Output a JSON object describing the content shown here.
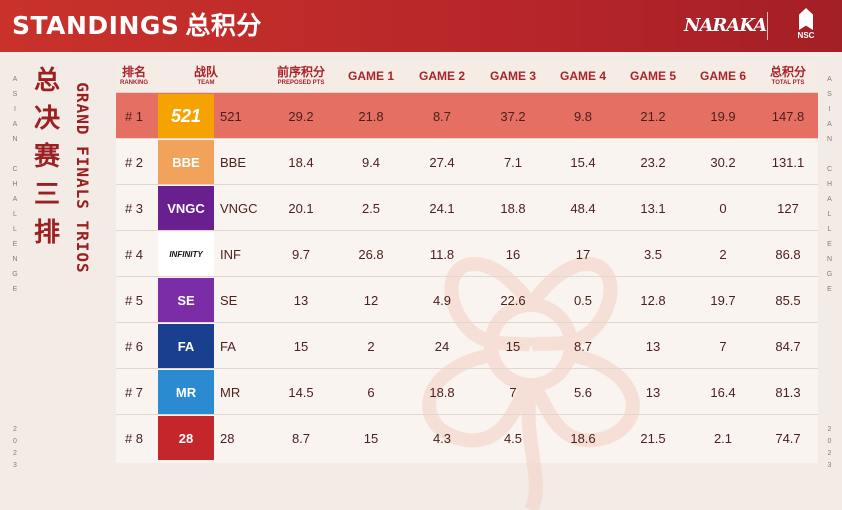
{
  "header": {
    "title_en": "STANDINGS",
    "title_cn": "总积分",
    "brand": "NARAKA",
    "event_logo": "NSC"
  },
  "side": {
    "left_vertical": "ASIAN CHALLENGE",
    "left_year": "2023",
    "right_vertical": "ASIAN CHALLENGE",
    "right_year": "2023",
    "cn_title": "总决赛三排",
    "en_title": "GRAND FINALS TRIOS"
  },
  "table": {
    "headers": [
      {
        "cn": "排名",
        "en": "RANKING"
      },
      {
        "cn": "战队",
        "en": "TEAM"
      },
      {
        "cn": "前序积分",
        "en": "PREPOSED PTS"
      },
      {
        "cn": "GAME 1",
        "en": ""
      },
      {
        "cn": "GAME 2",
        "en": ""
      },
      {
        "cn": "GAME 3",
        "en": ""
      },
      {
        "cn": "GAME 4",
        "en": ""
      },
      {
        "cn": "GAME 5",
        "en": ""
      },
      {
        "cn": "GAME 6",
        "en": ""
      },
      {
        "cn": "总积分",
        "en": "TOTAL PTS"
      }
    ],
    "rows": [
      {
        "rank": "# 1",
        "logo": "521",
        "logo_color": "#f6a200",
        "team": "521",
        "pre": "29.2",
        "g1": "21.8",
        "g2": "8.7",
        "g3": "37.2",
        "g4": "9.8",
        "g5": "21.2",
        "g6": "19.9",
        "total": "147.8"
      },
      {
        "rank": "# 2",
        "logo": "BBE",
        "logo_color": "#f1a35b",
        "team": "BBE",
        "pre": "18.4",
        "g1": "9.4",
        "g2": "27.4",
        "g3": "7.1",
        "g4": "15.4",
        "g5": "23.2",
        "g6": "30.2",
        "total": "131.1"
      },
      {
        "rank": "# 3",
        "logo": "VNGC",
        "logo_color": "#6a1f8f",
        "team": "VNGC",
        "pre": "20.1",
        "g1": "2.5",
        "g2": "24.1",
        "g3": "18.8",
        "g4": "48.4",
        "g5": "13.1",
        "g6": "0",
        "total": "127"
      },
      {
        "rank": "# 4",
        "logo": "INFINITY",
        "logo_color": "#ffffff",
        "team": "INF",
        "pre": "9.7",
        "g1": "26.8",
        "g2": "11.8",
        "g3": "16",
        "g4": "17",
        "g5": "3.5",
        "g6": "2",
        "total": "86.8"
      },
      {
        "rank": "# 5",
        "logo": "SE",
        "logo_color": "#7a2da6",
        "team": "SE",
        "pre": "13",
        "g1": "12",
        "g2": "4.9",
        "g3": "22.6",
        "g4": "0.5",
        "g5": "12.8",
        "g6": "19.7",
        "total": "85.5"
      },
      {
        "rank": "# 6",
        "logo": "FA",
        "logo_color": "#1b3f8f",
        "team": "FA",
        "pre": "15",
        "g1": "2",
        "g2": "24",
        "g3": "15",
        "g4": "8.7",
        "g5": "13",
        "g6": "7",
        "total": "84.7"
      },
      {
        "rank": "# 7",
        "logo": "MR",
        "logo_color": "#2a8bd0",
        "team": "MR",
        "pre": "14.5",
        "g1": "6",
        "g2": "18.8",
        "g3": "7",
        "g4": "5.6",
        "g5": "13",
        "g6": "16.4",
        "total": "81.3"
      },
      {
        "rank": "# 8",
        "logo": "28",
        "logo_color": "#c4262b",
        "team": "28",
        "pre": "8.7",
        "g1": "15",
        "g2": "4.3",
        "g3": "4.5",
        "g4": "18.6",
        "g5": "21.5",
        "g6": "2.1",
        "total": "74.7"
      }
    ]
  },
  "colors": {
    "accent": "#b8262a",
    "first_row": "#e66f64",
    "text": "#4a1f1c"
  }
}
